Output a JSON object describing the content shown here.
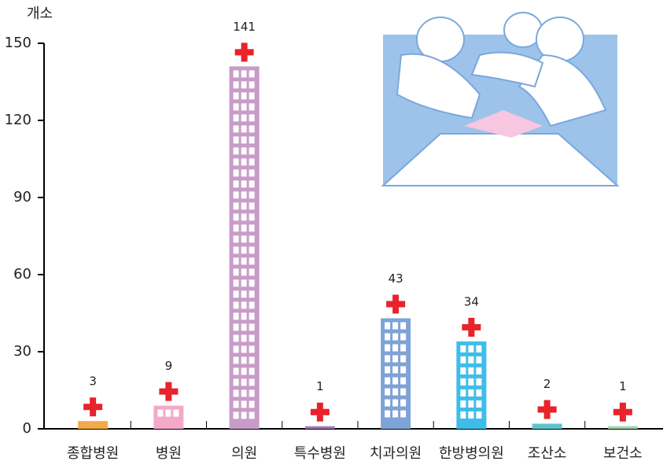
{
  "chart_data": {
    "type": "bar",
    "y_label": "개소",
    "categories": [
      "종합병원",
      "병원",
      "의원",
      "특수병원",
      "치과의원",
      "한방병의원",
      "조산소",
      "보건소"
    ],
    "values": [
      3,
      9,
      141,
      1,
      43,
      34,
      2,
      1
    ],
    "colors": [
      "#f3a94a",
      "#f5a9c8",
      "#c99bc9",
      "#9b79b5",
      "#7ea3d4",
      "#3fbdea",
      "#5ec4cb",
      "#9fd4a8"
    ],
    "ylim": [
      0,
      150
    ],
    "yticks": [
      0,
      30,
      60,
      90,
      120,
      150
    ]
  }
}
